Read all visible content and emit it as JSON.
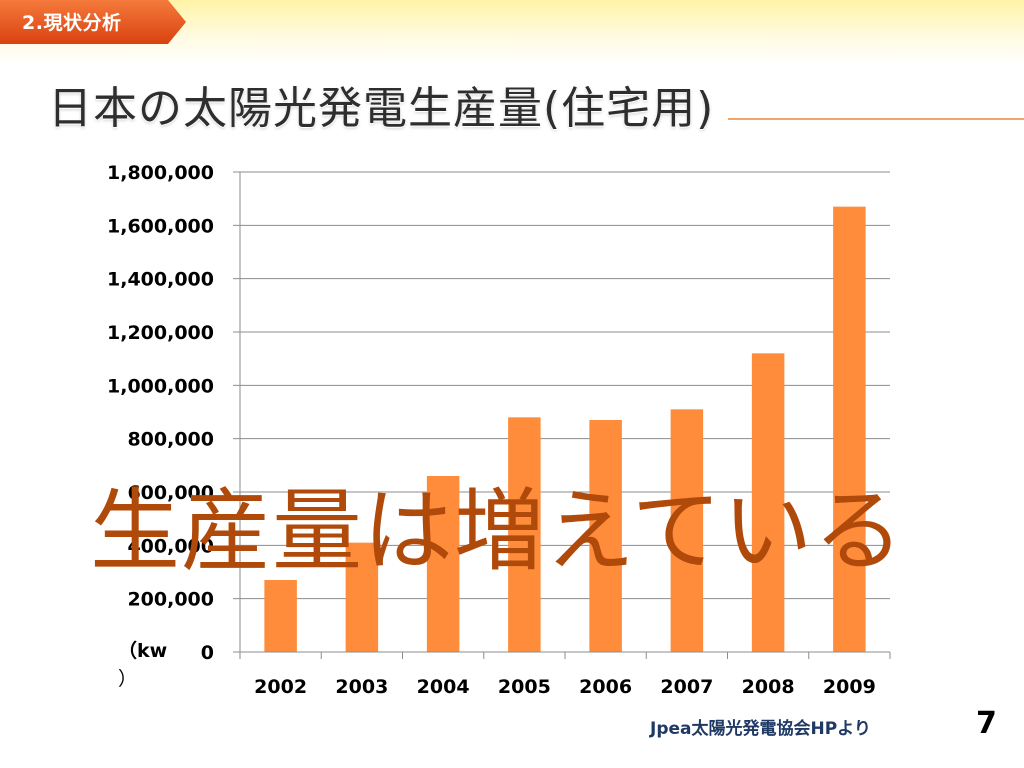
{
  "section_tab": {
    "label": "2.現状分析",
    "color": "#e8521c"
  },
  "title": "日本の太陽光発電生産量(住宅用)",
  "overlay_text": "生産量は増えている",
  "unit_label": "（kw",
  "unit_label_close": "）",
  "source": "Jpea太陽光発電協会HPより",
  "page_number": "7",
  "colors": {
    "bar": "#ff8c3a",
    "overlay": "#b04a0a",
    "accent_rule": "#f0a46a"
  },
  "chart_data": {
    "type": "bar",
    "categories": [
      "2002",
      "2003",
      "2004",
      "2005",
      "2006",
      "2007",
      "2008",
      "2009"
    ],
    "values": [
      270000,
      410000,
      660000,
      880000,
      870000,
      910000,
      1120000,
      1670000
    ],
    "y_tick_labels": [
      "0",
      "200,000",
      "400,000",
      "600,000",
      "800,000",
      "1,000,000",
      "1,200,000",
      "1,400,000",
      "1,600,000",
      "1,800,000"
    ],
    "ylim": [
      0,
      1800000
    ],
    "grid": true,
    "legend": "none"
  }
}
